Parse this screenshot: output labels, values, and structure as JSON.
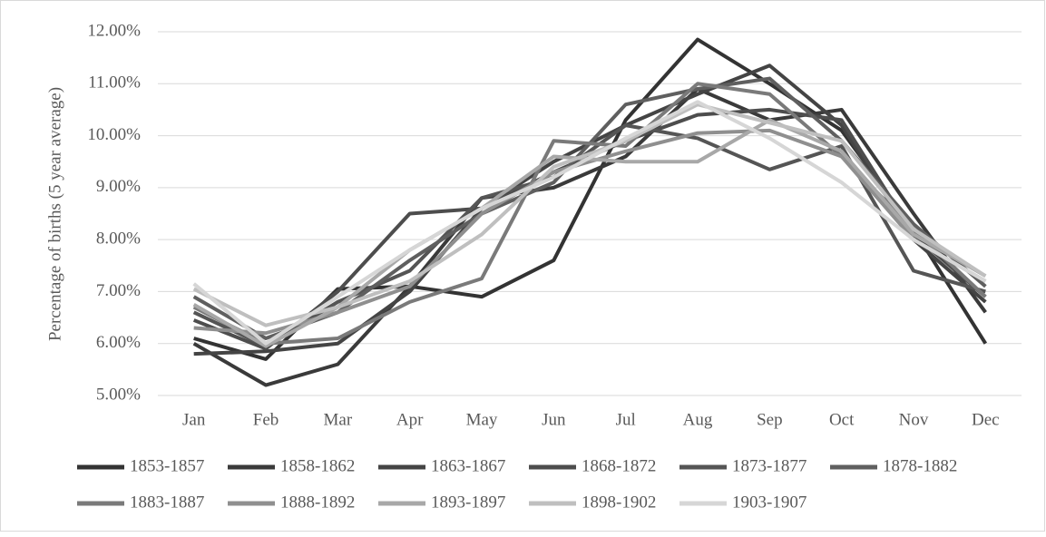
{
  "chart_data": {
    "type": "line",
    "y_label": "Percentage of births (5 year  average)",
    "categories": [
      "Jan",
      "Feb",
      "Mar",
      "Apr",
      "May",
      "Jun",
      "Jul",
      "Aug",
      "Sep",
      "Oct",
      "Nov",
      "Dec"
    ],
    "ylim": [
      5,
      12
    ],
    "yticks": [
      {
        "value": 5,
        "label": "5.00%"
      },
      {
        "value": 6,
        "label": "6.00%"
      },
      {
        "value": 7,
        "label": "7.00%"
      },
      {
        "value": 8,
        "label": "8.00%"
      },
      {
        "value": 9,
        "label": "9.00%"
      },
      {
        "value": 10,
        "label": "10.00%"
      },
      {
        "value": 11,
        "label": "11.00%"
      },
      {
        "value": 12,
        "label": "12.00%"
      }
    ],
    "grid": true,
    "legend": "bottom",
    "series": [
      {
        "name": "1853-1857",
        "color": "#333333",
        "values": [
          6.1,
          5.7,
          7.05,
          7.1,
          6.9,
          7.6,
          10.3,
          11.85,
          11.0,
          10.1,
          8.2,
          6.0
        ]
      },
      {
        "name": "1858-1862",
        "color": "#3a3a3a",
        "values": [
          6.0,
          5.2,
          5.6,
          7.1,
          8.8,
          9.0,
          9.6,
          10.9,
          10.3,
          10.5,
          8.5,
          6.6
        ]
      },
      {
        "name": "1863-1867",
        "color": "#444444",
        "values": [
          5.8,
          5.85,
          6.0,
          7.0,
          8.6,
          9.5,
          10.2,
          10.8,
          11.35,
          10.2,
          8.0,
          6.8
        ]
      },
      {
        "name": "1868-1872",
        "color": "#4d4d4d",
        "values": [
          6.45,
          5.9,
          7.0,
          8.5,
          8.6,
          9.3,
          9.9,
          10.4,
          10.5,
          10.3,
          8.1,
          6.9
        ]
      },
      {
        "name": "1873-1877",
        "color": "#555555",
        "values": [
          6.6,
          5.95,
          6.8,
          7.4,
          8.8,
          9.2,
          10.2,
          9.95,
          9.35,
          9.8,
          7.4,
          7.0
        ]
      },
      {
        "name": "1878-1882",
        "color": "#5f5f5f",
        "values": [
          6.9,
          6.1,
          6.6,
          7.6,
          8.5,
          9.1,
          10.6,
          10.9,
          11.1,
          9.9,
          8.3,
          7.1
        ]
      },
      {
        "name": "1883-1887",
        "color": "#7a7a7a",
        "values": [
          6.7,
          6.0,
          6.1,
          6.8,
          7.25,
          9.9,
          9.8,
          11.0,
          10.8,
          9.6,
          8.2,
          6.9
        ]
      },
      {
        "name": "1888-1892",
        "color": "#8f8f8f",
        "values": [
          6.3,
          6.2,
          6.6,
          7.1,
          8.5,
          9.3,
          9.7,
          10.05,
          10.1,
          9.6,
          8.0,
          7.2
        ]
      },
      {
        "name": "1893-1897",
        "color": "#a8a8a8",
        "values": [
          6.75,
          5.95,
          6.7,
          7.8,
          8.6,
          9.6,
          9.5,
          9.5,
          10.3,
          9.7,
          8.1,
          7.3
        ]
      },
      {
        "name": "1898-1902",
        "color": "#bfbfbf",
        "values": [
          7.05,
          6.35,
          6.7,
          7.2,
          8.1,
          9.4,
          9.9,
          10.6,
          10.25,
          9.9,
          8.2,
          7.3
        ]
      },
      {
        "name": "1903-1907",
        "color": "#d6d6d6",
        "values": [
          7.15,
          6.0,
          6.9,
          7.8,
          8.6,
          9.2,
          9.95,
          10.65,
          9.95,
          9.1,
          8.0,
          7.2
        ]
      }
    ]
  }
}
